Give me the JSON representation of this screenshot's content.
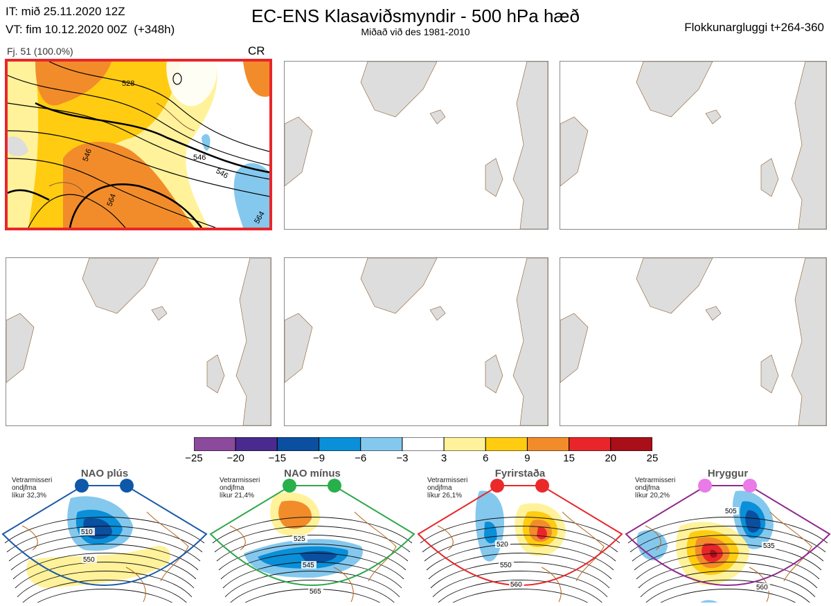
{
  "header": {
    "it_line": "IT: mið 25.11.2020 12Z",
    "vt_line": "VT: fim 10.12.2020 00Z  (+348h)",
    "title": "EC-ENS Klasaviðsmyndir - 500 hPa hæð",
    "subtitle": "Miðað við des 1981-2010",
    "window": "Flokkunargluggi t+264-360"
  },
  "panels": {
    "first": {
      "label": "Fj. 51 (100.0%)",
      "regime": "CR"
    },
    "contour_labels": [
      "528",
      "546",
      "546",
      "564",
      "546",
      "564"
    ]
  },
  "colorbar": {
    "ticks": [
      "−25",
      "−20",
      "−15",
      "−9",
      "−6",
      "−3",
      "3",
      "6",
      "9",
      "15",
      "20",
      "25"
    ],
    "colors": [
      "#8b4a9c",
      "#4a2a8e",
      "#0a4fa0",
      "#0a8fd8",
      "#84c8ee",
      "#ffffff",
      "#fff29a",
      "#ffcc11",
      "#f28c2a",
      "#e8262a",
      "#a90f18"
    ]
  },
  "regimes": [
    {
      "name": "NAO plús",
      "season": "Vetrarmisseri",
      "months": "ondjfma",
      "prob": "líkur 32,3%",
      "color": "#1a5aa8",
      "dot": "#0d58a8",
      "labels": [
        "510",
        "550"
      ]
    },
    {
      "name": "NAO mínus",
      "season": "Vetrarmisseri",
      "months": "ondjfma",
      "prob": "líkur 21,4%",
      "color": "#2ea84a",
      "dot": "#28b04a",
      "labels": [
        "525",
        "545",
        "565"
      ]
    },
    {
      "name": "Fyrirstaða",
      "season": "Vetrarmisseri",
      "months": "ondjfma",
      "prob": "líkur 26,1%",
      "color": "#e8262a",
      "dot": "#ea2a2a",
      "labels": [
        "520",
        "550",
        "560"
      ]
    },
    {
      "name": "Hryggur",
      "season": "Vetrarmisseri",
      "months": "ondjfma",
      "prob": "líkur 20,2%",
      "color": "#8e2a8e",
      "dot": "#ea7ae8",
      "labels": [
        "505",
        "535",
        "560"
      ]
    }
  ]
}
